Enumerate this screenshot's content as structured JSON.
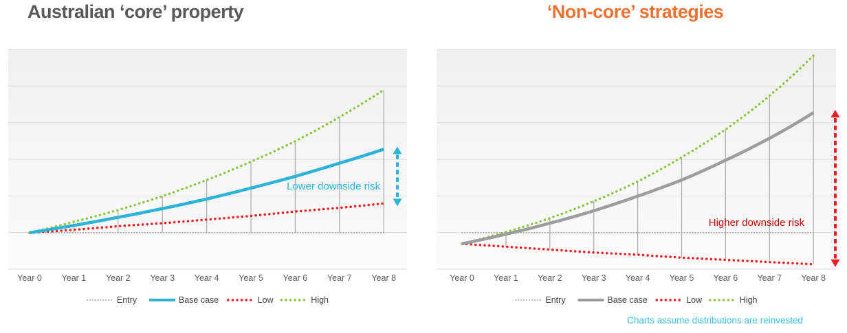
{
  "titles": {
    "left": "Australian ‘core’ property",
    "right": "‘Non-core’ strategies"
  },
  "footnote": "Charts assume distributions are reinvested",
  "colors": {
    "left_title": "#595959",
    "right_title": "#E97132",
    "footnote": "#3EC0E8",
    "axis_label": "#595959",
    "legend_label": "#404040",
    "gridline": "#DBDBDB",
    "dropline": "#ABABAB",
    "plot_bg_top": "#F0F0F0",
    "plot_bg_bottom": "#FBFBFB"
  },
  "chart_data": [
    {
      "type": "line",
      "title": "Australian ‘core’ property",
      "x_labels": [
        "Year 0",
        "Year 1",
        "Year 2",
        "Year 3",
        "Year 4",
        "Year 5",
        "Year 6",
        "Year 7",
        "Year 8"
      ],
      "ylim": [
        50,
        350
      ],
      "grid": true,
      "legend_position": "bottom",
      "series": [
        {
          "name": "Entry",
          "color": "#A8A8A8",
          "style": "dot-fine",
          "width": 2,
          "values": [
            100,
            100,
            100,
            100,
            100,
            100,
            100,
            100,
            100
          ]
        },
        {
          "name": "Base case",
          "color": "#2DB2D8",
          "style": "solid",
          "width": 4.5,
          "values": [
            100,
            110,
            121,
            133,
            146,
            161,
            177,
            195,
            214
          ]
        },
        {
          "name": "Low",
          "color": "#ED1C24",
          "style": "dot",
          "width": 3.5,
          "values": [
            100,
            104,
            109,
            113,
            118,
            123,
            129,
            134,
            140
          ]
        },
        {
          "name": "High",
          "color": "#8DC63F",
          "style": "dot",
          "width": 3.5,
          "values": [
            100,
            115,
            131,
            150,
            172,
            197,
            225,
            258,
            295
          ]
        }
      ],
      "droplines": {
        "from": "High",
        "to": "Entry"
      },
      "annotation": {
        "text": "Lower downside risk",
        "color": "#2DB2D8"
      },
      "arrow": {
        "color": "#2DB2D8",
        "from_series": "Base case",
        "to_series": "Low"
      }
    },
    {
      "type": "line",
      "title": "‘Non-core’ strategies",
      "x_labels": [
        "Year 0",
        "Year 1",
        "Year 2",
        "Year 3",
        "Year 4",
        "Year 5",
        "Year 6",
        "Year 7",
        "Year 8"
      ],
      "ylim": [
        50,
        350
      ],
      "grid": true,
      "legend_position": "bottom",
      "series": [
        {
          "name": "Entry",
          "color": "#A8A8A8",
          "style": "dot-fine",
          "width": 2,
          "values": [
            100,
            100,
            100,
            100,
            100,
            100,
            100,
            100,
            100
          ]
        },
        {
          "name": "Base case",
          "color": "#9D9D9D",
          "style": "solid",
          "width": 4.5,
          "values": [
            85,
            98,
            113,
            130,
            150,
            172,
            199,
            229,
            264
          ]
        },
        {
          "name": "Low",
          "color": "#ED1C24",
          "style": "dot",
          "width": 3.5,
          "values": [
            85,
            81,
            77,
            73,
            70,
            66,
            63,
            60,
            57
          ]
        },
        {
          "name": "High",
          "color": "#8DC63F",
          "style": "dot",
          "width": 3.5,
          "values": [
            85,
            101,
            120,
            143,
            170,
            203,
            241,
            287,
            342
          ]
        }
      ],
      "droplines": {
        "from": "High",
        "to": "Low"
      },
      "annotation": {
        "text": "Higher downside risk",
        "color": "#C00000"
      },
      "arrow": {
        "color": "#ED1C24",
        "from_series": "Base case",
        "to_series": "Low"
      }
    }
  ]
}
